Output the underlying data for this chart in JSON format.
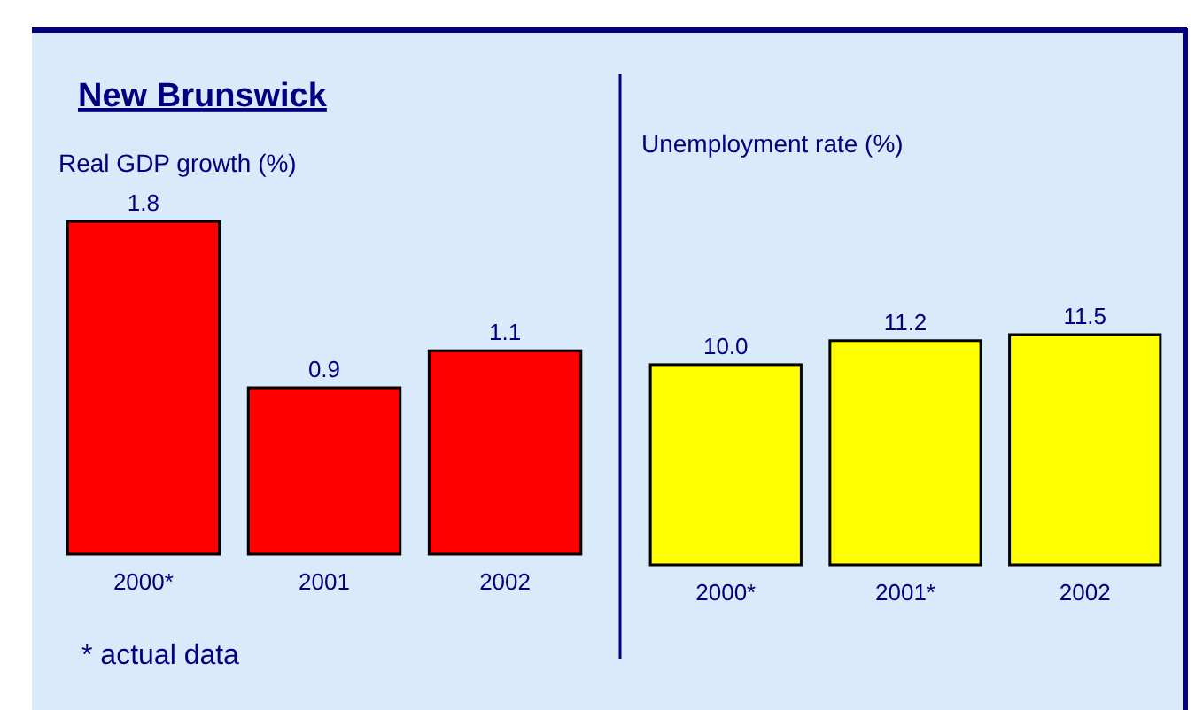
{
  "chart_data": [
    {
      "type": "bar",
      "title": "New Brunswick",
      "subtitle": "Real GDP growth (%)",
      "categories": [
        "2000*",
        "2001",
        "2002"
      ],
      "values": [
        1.8,
        0.9,
        1.1
      ],
      "color": "#ff0000",
      "data_labels": true,
      "tick_labels": "x",
      "annotations": [
        "* actual data"
      ]
    },
    {
      "type": "bar",
      "subtitle": "Unemployment rate (%)",
      "categories": [
        "2000*",
        "2001*",
        "2002"
      ],
      "values": [
        10.0,
        11.2,
        11.5
      ],
      "value_labels": [
        "10.0",
        "11.2",
        "11.5"
      ],
      "color": "#ffff00",
      "tick_labels": "x"
    }
  ]
}
